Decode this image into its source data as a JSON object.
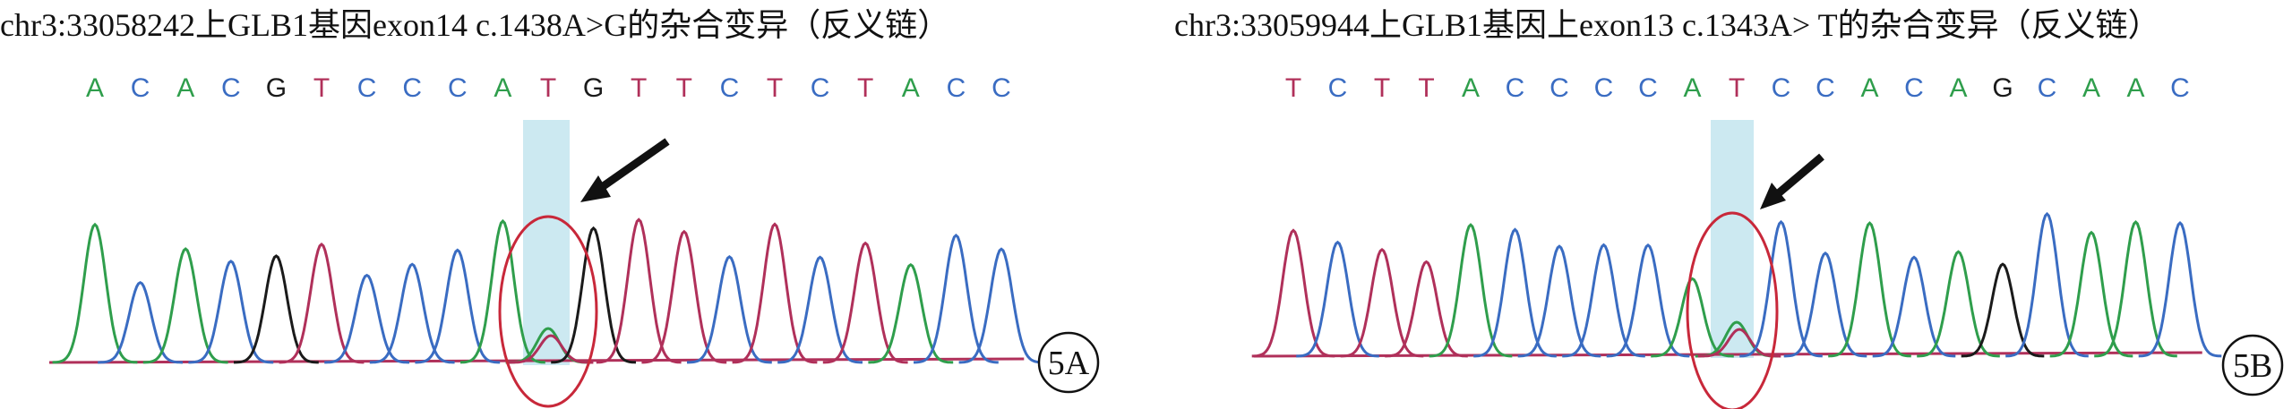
{
  "panels": [
    {
      "title": "chr3:33058242上GLB1基因exon14 c.1438A>G的杂合变异（反义链）",
      "bases": [
        "A",
        "C",
        "A",
        "C",
        "G",
        "T",
        "C",
        "C",
        "C",
        "A",
        "T",
        "G",
        "T",
        "T",
        "C",
        "T",
        "C",
        "T",
        "A",
        "C",
        "C"
      ],
      "label": "5A"
    },
    {
      "title": "chr3:33059944上GLB1基因上exon13 c.1343A> T的杂合变异（反义链）",
      "bases": [
        "T",
        "C",
        "T",
        "T",
        "A",
        "C",
        "C",
        "C",
        "C",
        "A",
        "T",
        "C",
        "C",
        "A",
        "C",
        "A",
        "G",
        "C",
        "A",
        "A",
        "C"
      ],
      "label": "5B"
    }
  ],
  "colors": {
    "A": "#2f9e4c",
    "C": "#3a6cc2",
    "G": "#1a1a1a",
    "T": "#b0305a"
  }
}
